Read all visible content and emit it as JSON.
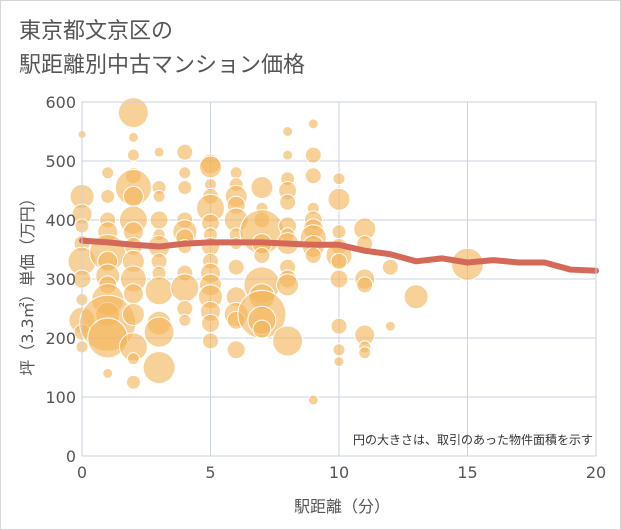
{
  "chart_data": {
    "type": "scatter",
    "title": "東京都文京区の\n駅距離別中古マンション価格",
    "title_lines": [
      "東京都文京区の",
      "駅距離別中古マンション価格"
    ],
    "xlabel": "駅距離（分）",
    "ylabel": "坪（3.3㎡）単価（万円）",
    "xlim": [
      0,
      20
    ],
    "ylim": [
      0,
      600
    ],
    "x_ticks": [
      0,
      5,
      10,
      15,
      20
    ],
    "y_ticks": [
      0,
      100,
      200,
      300,
      400,
      500,
      600
    ],
    "grid": true,
    "note": "円の大きさは、取引のあった物件面積を示す",
    "colors": {
      "bubble": "#f3b55a",
      "trend": "#d4695a",
      "grid": "#c8d3df",
      "plot_border": "#c8d3df"
    },
    "series": [
      {
        "type": "bubble",
        "points": [
          {
            "x": 0,
            "y": 545,
            "r": 4
          },
          {
            "x": 0,
            "y": 440,
            "r": 12
          },
          {
            "x": 0,
            "y": 410,
            "r": 10
          },
          {
            "x": 0,
            "y": 390,
            "r": 7
          },
          {
            "x": 0,
            "y": 360,
            "r": 8
          },
          {
            "x": 0,
            "y": 330,
            "r": 14
          },
          {
            "x": 0,
            "y": 300,
            "r": 9
          },
          {
            "x": 0,
            "y": 265,
            "r": 6
          },
          {
            "x": 0,
            "y": 230,
            "r": 13
          },
          {
            "x": 0,
            "y": 210,
            "r": 8
          },
          {
            "x": 0,
            "y": 185,
            "r": 6
          },
          {
            "x": 1,
            "y": 480,
            "r": 6
          },
          {
            "x": 1,
            "y": 440,
            "r": 7
          },
          {
            "x": 1,
            "y": 400,
            "r": 8
          },
          {
            "x": 1,
            "y": 380,
            "r": 10
          },
          {
            "x": 1,
            "y": 345,
            "r": 18
          },
          {
            "x": 1,
            "y": 330,
            "r": 10
          },
          {
            "x": 1,
            "y": 305,
            "r": 12
          },
          {
            "x": 1,
            "y": 290,
            "r": 9
          },
          {
            "x": 1,
            "y": 265,
            "r": 16
          },
          {
            "x": 1,
            "y": 240,
            "r": 12
          },
          {
            "x": 1,
            "y": 225,
            "r": 28
          },
          {
            "x": 1,
            "y": 200,
            "r": 20
          },
          {
            "x": 1,
            "y": 140,
            "r": 5
          },
          {
            "x": 2,
            "y": 582,
            "r": 15
          },
          {
            "x": 2,
            "y": 540,
            "r": 5
          },
          {
            "x": 2,
            "y": 510,
            "r": 6
          },
          {
            "x": 2,
            "y": 475,
            "r": 8
          },
          {
            "x": 2,
            "y": 455,
            "r": 18
          },
          {
            "x": 2,
            "y": 440,
            "r": 10
          },
          {
            "x": 2,
            "y": 400,
            "r": 14
          },
          {
            "x": 2,
            "y": 380,
            "r": 10
          },
          {
            "x": 2,
            "y": 355,
            "r": 9
          },
          {
            "x": 2,
            "y": 330,
            "r": 11
          },
          {
            "x": 2,
            "y": 300,
            "r": 13
          },
          {
            "x": 2,
            "y": 275,
            "r": 10
          },
          {
            "x": 2,
            "y": 240,
            "r": 11
          },
          {
            "x": 2,
            "y": 185,
            "r": 14
          },
          {
            "x": 2,
            "y": 165,
            "r": 6
          },
          {
            "x": 2,
            "y": 125,
            "r": 7
          },
          {
            "x": 3,
            "y": 515,
            "r": 5
          },
          {
            "x": 3,
            "y": 455,
            "r": 7
          },
          {
            "x": 3,
            "y": 440,
            "r": 6
          },
          {
            "x": 3,
            "y": 400,
            "r": 9
          },
          {
            "x": 3,
            "y": 375,
            "r": 6
          },
          {
            "x": 3,
            "y": 355,
            "r": 11
          },
          {
            "x": 3,
            "y": 330,
            "r": 8
          },
          {
            "x": 3,
            "y": 310,
            "r": 7
          },
          {
            "x": 3,
            "y": 280,
            "r": 14
          },
          {
            "x": 3,
            "y": 225,
            "r": 12
          },
          {
            "x": 3,
            "y": 210,
            "r": 15
          },
          {
            "x": 3,
            "y": 150,
            "r": 16
          },
          {
            "x": 4,
            "y": 515,
            "r": 8
          },
          {
            "x": 4,
            "y": 480,
            "r": 6
          },
          {
            "x": 4,
            "y": 455,
            "r": 7
          },
          {
            "x": 4,
            "y": 400,
            "r": 8
          },
          {
            "x": 4,
            "y": 380,
            "r": 12
          },
          {
            "x": 4,
            "y": 370,
            "r": 9
          },
          {
            "x": 4,
            "y": 355,
            "r": 7
          },
          {
            "x": 4,
            "y": 310,
            "r": 8
          },
          {
            "x": 4,
            "y": 285,
            "r": 14
          },
          {
            "x": 4,
            "y": 250,
            "r": 8
          },
          {
            "x": 4,
            "y": 230,
            "r": 6
          },
          {
            "x": 5,
            "y": 495,
            "r": 10
          },
          {
            "x": 5,
            "y": 490,
            "r": 11
          },
          {
            "x": 5,
            "y": 460,
            "r": 6
          },
          {
            "x": 5,
            "y": 440,
            "r": 8
          },
          {
            "x": 5,
            "y": 420,
            "r": 14
          },
          {
            "x": 5,
            "y": 395,
            "r": 9
          },
          {
            "x": 5,
            "y": 375,
            "r": 7
          },
          {
            "x": 5,
            "y": 355,
            "r": 9
          },
          {
            "x": 5,
            "y": 330,
            "r": 8
          },
          {
            "x": 5,
            "y": 310,
            "r": 10
          },
          {
            "x": 5,
            "y": 290,
            "r": 11
          },
          {
            "x": 5,
            "y": 270,
            "r": 12
          },
          {
            "x": 5,
            "y": 245,
            "r": 10
          },
          {
            "x": 5,
            "y": 225,
            "r": 9
          },
          {
            "x": 5,
            "y": 195,
            "r": 8
          },
          {
            "x": 6,
            "y": 480,
            "r": 6
          },
          {
            "x": 6,
            "y": 460,
            "r": 7
          },
          {
            "x": 6,
            "y": 440,
            "r": 11
          },
          {
            "x": 6,
            "y": 425,
            "r": 9
          },
          {
            "x": 6,
            "y": 400,
            "r": 12
          },
          {
            "x": 6,
            "y": 375,
            "r": 7
          },
          {
            "x": 6,
            "y": 360,
            "r": 6
          },
          {
            "x": 6,
            "y": 320,
            "r": 8
          },
          {
            "x": 6,
            "y": 270,
            "r": 10
          },
          {
            "x": 6,
            "y": 240,
            "r": 12
          },
          {
            "x": 6,
            "y": 230,
            "r": 9
          },
          {
            "x": 6,
            "y": 180,
            "r": 9
          },
          {
            "x": 7,
            "y": 455,
            "r": 11
          },
          {
            "x": 7,
            "y": 420,
            "r": 6
          },
          {
            "x": 7,
            "y": 400,
            "r": 8
          },
          {
            "x": 7,
            "y": 380,
            "r": 22
          },
          {
            "x": 7,
            "y": 360,
            "r": 10
          },
          {
            "x": 7,
            "y": 340,
            "r": 8
          },
          {
            "x": 7,
            "y": 290,
            "r": 18
          },
          {
            "x": 7,
            "y": 270,
            "r": 13
          },
          {
            "x": 7,
            "y": 240,
            "r": 24
          },
          {
            "x": 7,
            "y": 230,
            "r": 14
          },
          {
            "x": 7,
            "y": 215,
            "r": 9
          },
          {
            "x": 8,
            "y": 550,
            "r": 5
          },
          {
            "x": 8,
            "y": 510,
            "r": 5
          },
          {
            "x": 8,
            "y": 470,
            "r": 7
          },
          {
            "x": 8,
            "y": 450,
            "r": 9
          },
          {
            "x": 8,
            "y": 430,
            "r": 8
          },
          {
            "x": 8,
            "y": 390,
            "r": 9
          },
          {
            "x": 8,
            "y": 375,
            "r": 7
          },
          {
            "x": 8,
            "y": 360,
            "r": 11
          },
          {
            "x": 8,
            "y": 320,
            "r": 8
          },
          {
            "x": 8,
            "y": 300,
            "r": 9
          },
          {
            "x": 8,
            "y": 290,
            "r": 11
          },
          {
            "x": 8,
            "y": 195,
            "r": 15
          },
          {
            "x": 9,
            "y": 563,
            "r": 5
          },
          {
            "x": 9,
            "y": 510,
            "r": 8
          },
          {
            "x": 9,
            "y": 475,
            "r": 8
          },
          {
            "x": 9,
            "y": 420,
            "r": 6
          },
          {
            "x": 9,
            "y": 400,
            "r": 9
          },
          {
            "x": 9,
            "y": 385,
            "r": 10
          },
          {
            "x": 9,
            "y": 370,
            "r": 13
          },
          {
            "x": 9,
            "y": 355,
            "r": 11
          },
          {
            "x": 9,
            "y": 340,
            "r": 8
          },
          {
            "x": 9,
            "y": 95,
            "r": 5
          },
          {
            "x": 10,
            "y": 470,
            "r": 6
          },
          {
            "x": 10,
            "y": 435,
            "r": 11
          },
          {
            "x": 10,
            "y": 380,
            "r": 7
          },
          {
            "x": 10,
            "y": 355,
            "r": 8
          },
          {
            "x": 10,
            "y": 340,
            "r": 13
          },
          {
            "x": 10,
            "y": 330,
            "r": 8
          },
          {
            "x": 10,
            "y": 300,
            "r": 9
          },
          {
            "x": 10,
            "y": 220,
            "r": 8
          },
          {
            "x": 10,
            "y": 180,
            "r": 6
          },
          {
            "x": 10,
            "y": 160,
            "r": 5
          },
          {
            "x": 11,
            "y": 385,
            "r": 11
          },
          {
            "x": 11,
            "y": 360,
            "r": 8
          },
          {
            "x": 11,
            "y": 300,
            "r": 10
          },
          {
            "x": 11,
            "y": 290,
            "r": 8
          },
          {
            "x": 11,
            "y": 205,
            "r": 10
          },
          {
            "x": 11,
            "y": 185,
            "r": 6
          },
          {
            "x": 11,
            "y": 175,
            "r": 6
          },
          {
            "x": 12,
            "y": 320,
            "r": 8
          },
          {
            "x": 12,
            "y": 220,
            "r": 5
          },
          {
            "x": 13,
            "y": 270,
            "r": 12
          },
          {
            "x": 15,
            "y": 325,
            "r": 16
          }
        ]
      },
      {
        "type": "line",
        "points": [
          {
            "x": 0,
            "y": 365
          },
          {
            "x": 1,
            "y": 362
          },
          {
            "x": 2,
            "y": 358
          },
          {
            "x": 3,
            "y": 355
          },
          {
            "x": 4,
            "y": 360
          },
          {
            "x": 5,
            "y": 362
          },
          {
            "x": 6,
            "y": 362
          },
          {
            "x": 7,
            "y": 362
          },
          {
            "x": 8,
            "y": 360
          },
          {
            "x": 9,
            "y": 358
          },
          {
            "x": 10,
            "y": 358
          },
          {
            "x": 11,
            "y": 348
          },
          {
            "x": 12,
            "y": 342
          },
          {
            "x": 13,
            "y": 330
          },
          {
            "x": 14,
            "y": 335
          },
          {
            "x": 15,
            "y": 328
          },
          {
            "x": 16,
            "y": 332
          },
          {
            "x": 17,
            "y": 328
          },
          {
            "x": 18,
            "y": 328
          },
          {
            "x": 19,
            "y": 316
          },
          {
            "x": 20,
            "y": 314
          }
        ]
      }
    ]
  }
}
